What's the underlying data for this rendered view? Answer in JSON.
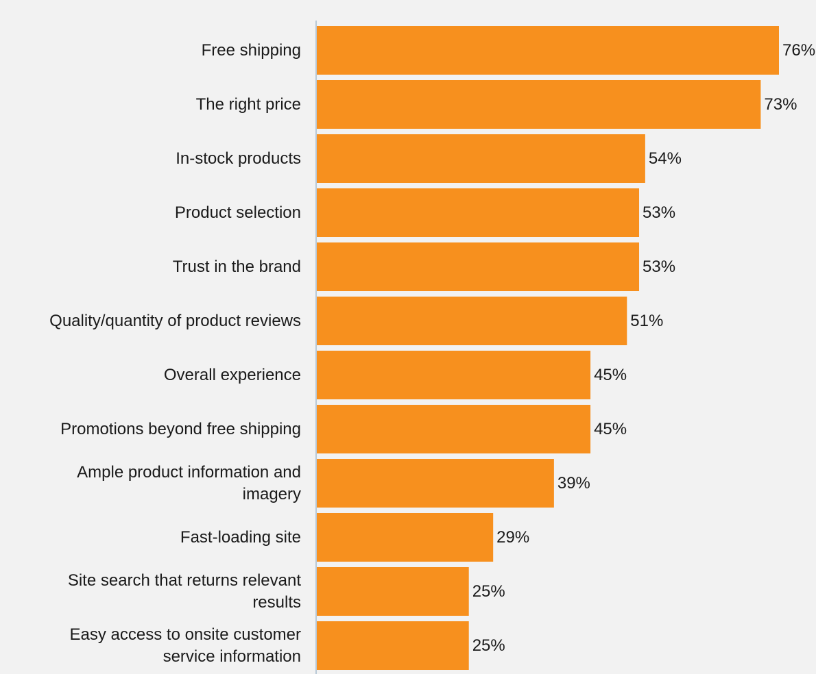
{
  "chart_data": {
    "type": "bar",
    "orientation": "horizontal",
    "title": "",
    "xlabel": "",
    "ylabel": "",
    "xlim": [
      0,
      76
    ],
    "grid": false,
    "bar_color": "#f7901e",
    "axis_color": "#b9c9d6",
    "background": "#f2f2f2",
    "categories": [
      [
        "Free shipping"
      ],
      [
        "The right price"
      ],
      [
        "In-stock products"
      ],
      [
        "Product selection"
      ],
      [
        "Trust in the brand"
      ],
      [
        "Quality/quantity of product reviews"
      ],
      [
        "Overall experience"
      ],
      [
        "Promotions beyond free shipping"
      ],
      [
        "Ample product information and",
        "imagery"
      ],
      [
        "Fast-loading site"
      ],
      [
        "Site search that returns relevant",
        "results"
      ],
      [
        "Easy access to onsite customer",
        "service information"
      ]
    ],
    "values": [
      76,
      73,
      54,
      53,
      53,
      51,
      45,
      45,
      39,
      29,
      25,
      25
    ],
    "data_labels": [
      "76%",
      "73%",
      "54%",
      "53%",
      "53%",
      "51%",
      "45%",
      "45%",
      "39%",
      "29%",
      "25%",
      "25%"
    ]
  }
}
